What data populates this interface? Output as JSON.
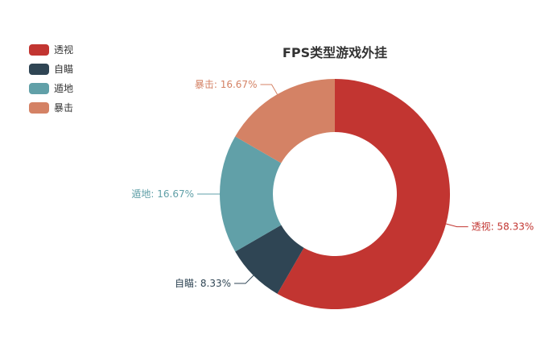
{
  "chart_data": {
    "type": "pie",
    "style": "donut",
    "title": "FPS类型游戏外挂",
    "legend_position": "top-left",
    "categories": [
      "透视",
      "自瞄",
      "遁地",
      "暴击"
    ],
    "values": [
      58.33,
      8.33,
      16.67,
      16.67
    ],
    "value_labels": [
      "58.33%",
      "8.33%",
      "16.67%",
      "16.67%"
    ],
    "colors": [
      "#c23531",
      "#2f4554",
      "#61a0a8",
      "#d48265"
    ]
  }
}
